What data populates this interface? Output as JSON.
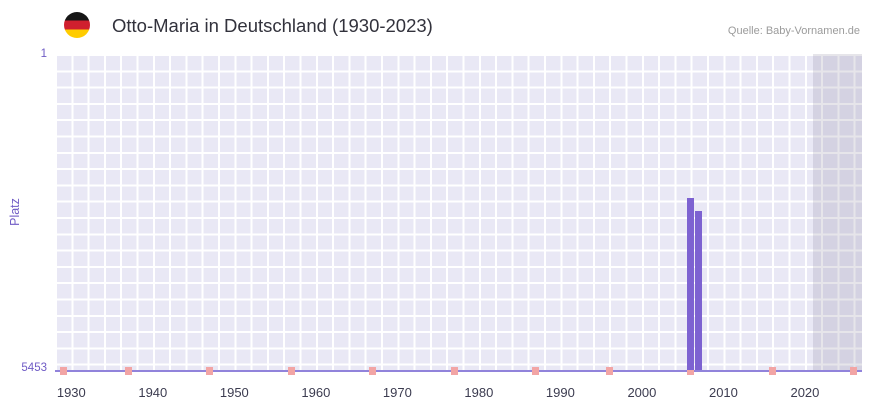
{
  "chart_data": {
    "type": "bar",
    "title": "Otto-Maria in Deutschland (1930-2023)",
    "source": "Quelle: Baby-Vornamen.de",
    "flag_icon": "germany-flag",
    "xlabel": "",
    "ylabel": "Platz",
    "y_inverted": true,
    "y_range": [
      1,
      5453
    ],
    "y_ticks": [
      "1",
      "5453"
    ],
    "bar_baseline": 5453,
    "x_range": [
      1928,
      2027
    ],
    "x_ticks": [
      1930,
      1940,
      1950,
      1960,
      1970,
      1980,
      1990,
      2000,
      2010,
      2020
    ],
    "bars": [
      {
        "year": 2006,
        "rank": 2485
      },
      {
        "year": 2007,
        "rank": 2710
      }
    ],
    "unranked_marker_years": [
      1929,
      1937,
      1947,
      1957,
      1967,
      1977,
      1987,
      1996,
      2006,
      2016,
      2026
    ],
    "recent_band": {
      "from": 2021,
      "to": 2027
    },
    "grid": true,
    "legend": false,
    "colors": {
      "bar": "#7d62d1",
      "marker": "#f2a5a5",
      "plot_bg": "#e9e8f5",
      "grid_line": "#ffffff",
      "axis_line": "#9183db",
      "y_text": "#6f5bc5",
      "x_text": "#3c3c50",
      "recent_band": "rgba(128,126,150,0.20)"
    }
  }
}
